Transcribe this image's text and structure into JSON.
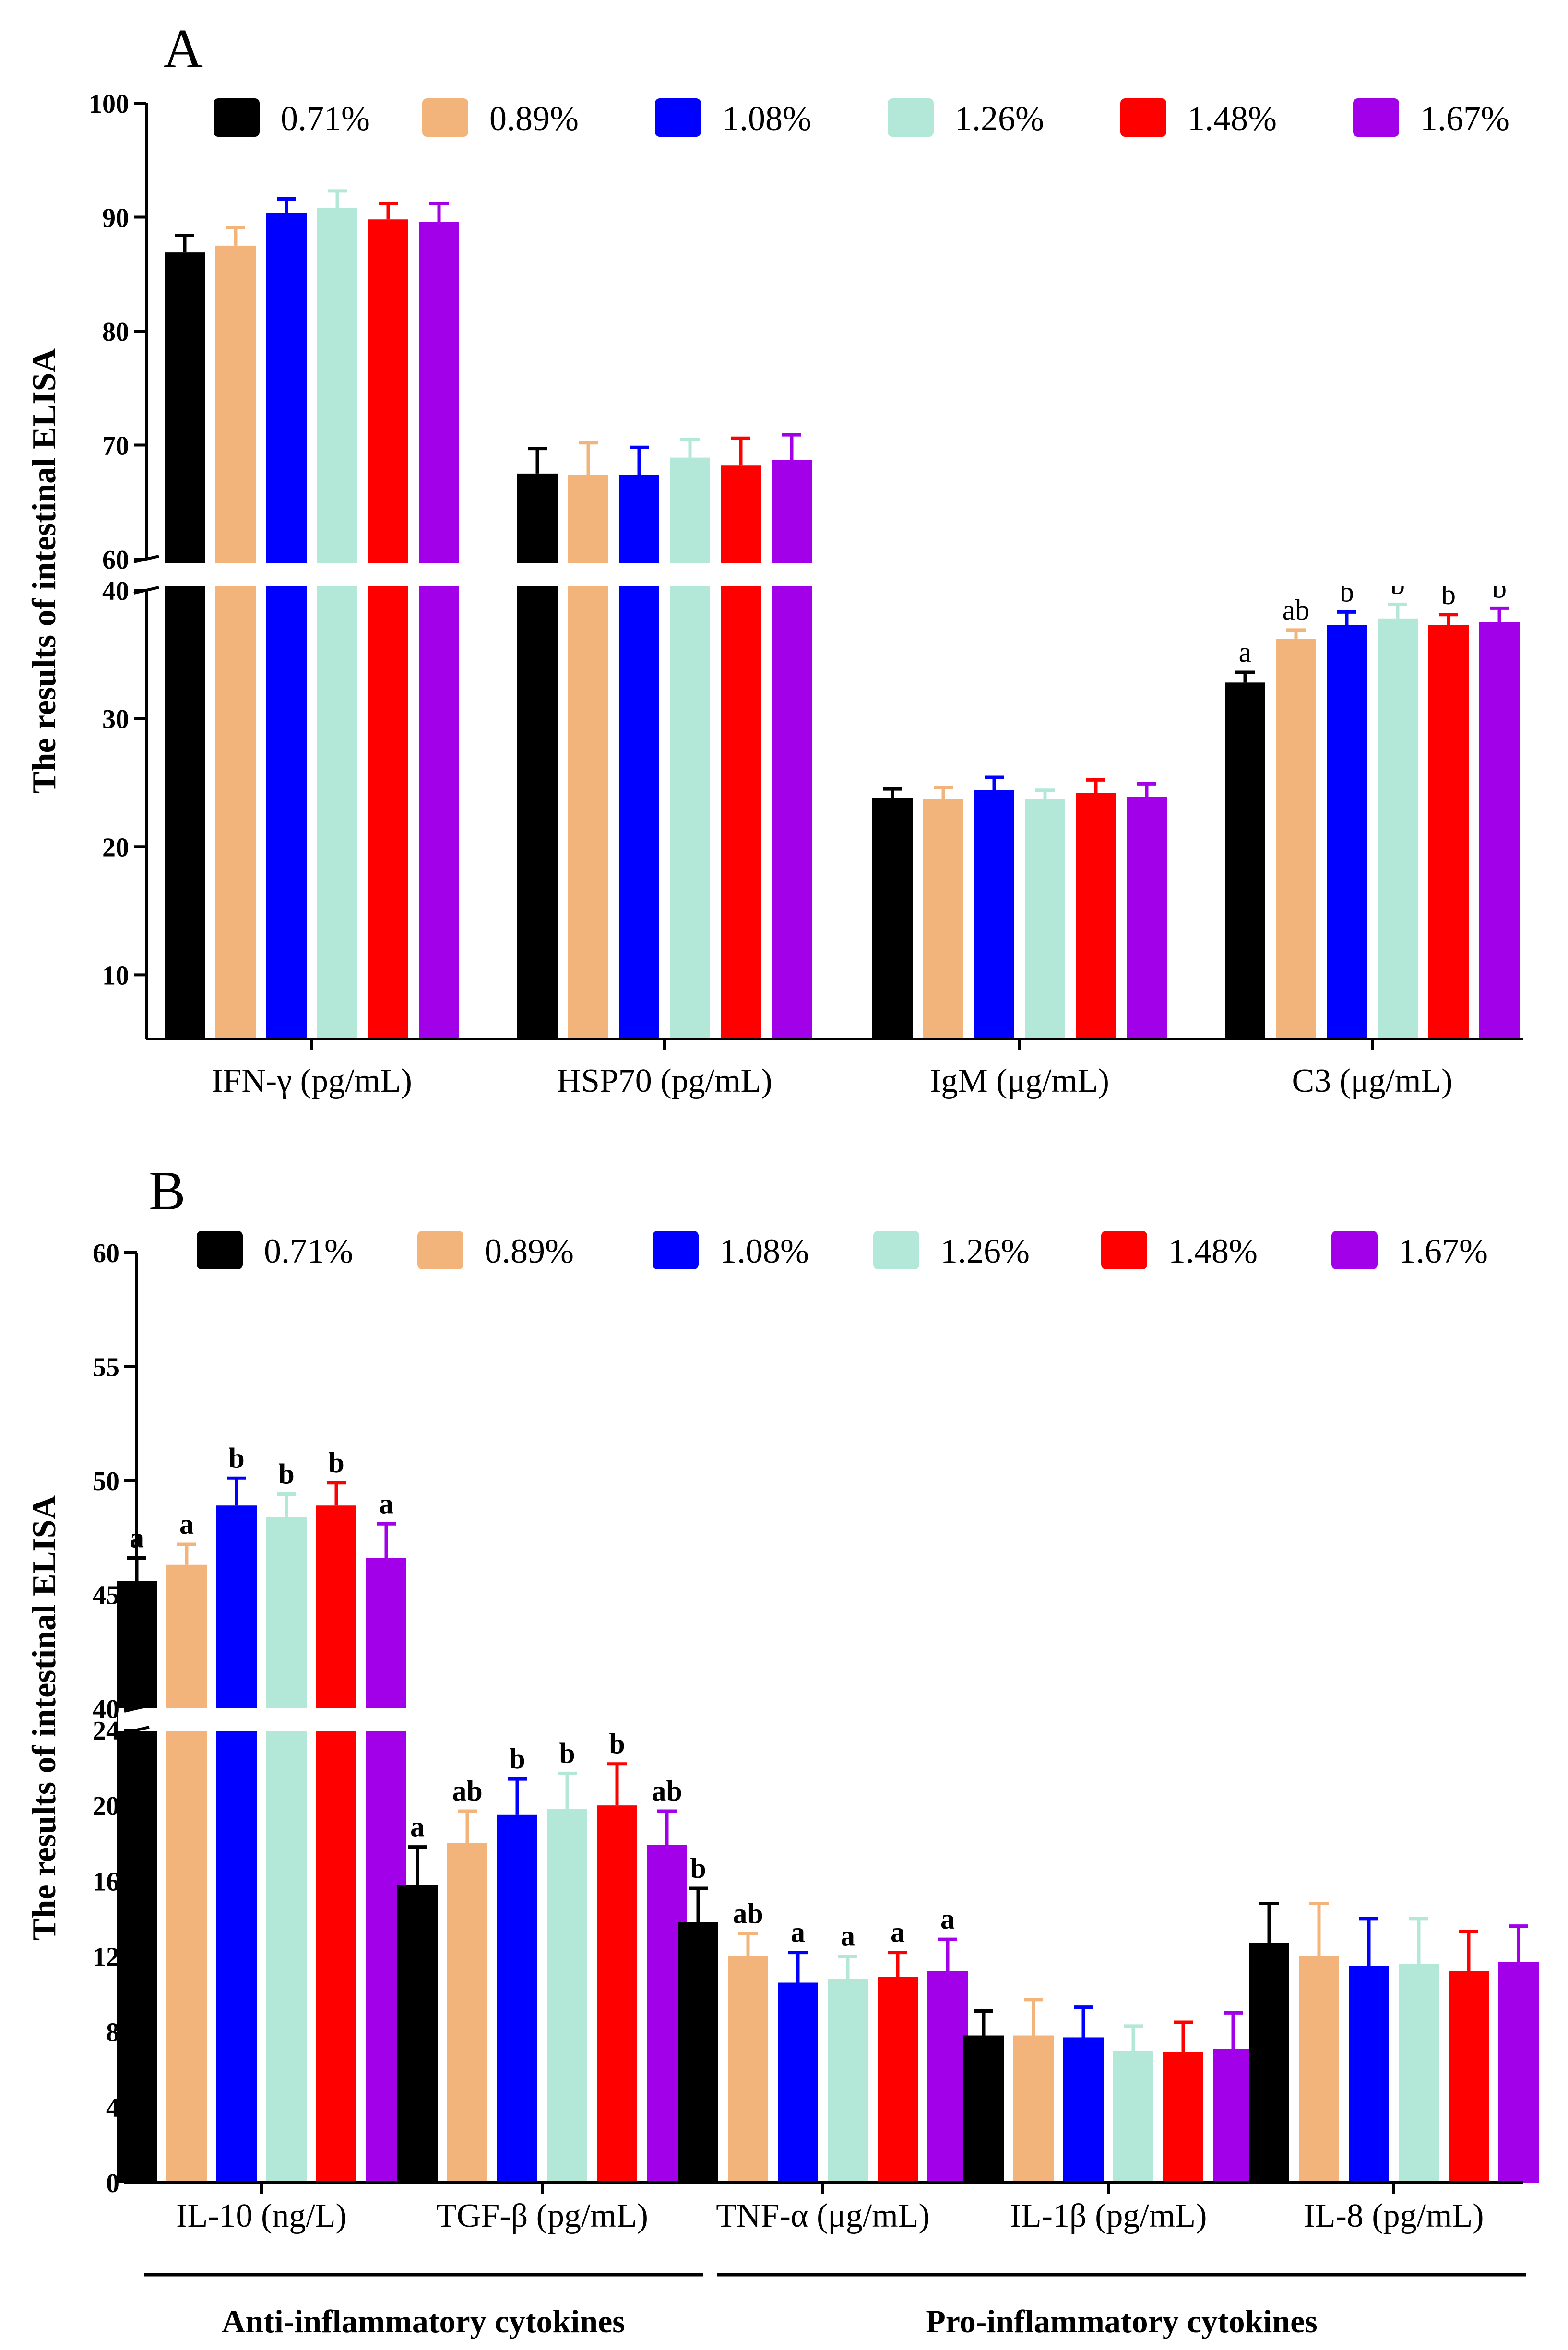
{
  "chart_data": [
    {
      "panel": "A",
      "type": "bar",
      "ylabel": "The results of intestinal ELISA",
      "axis_break": {
        "lower": [
          5,
          40
        ],
        "upper": [
          60,
          100
        ]
      },
      "yticks_lower": [
        10,
        20,
        30,
        40
      ],
      "yticks_upper": [
        60,
        70,
        80,
        90,
        100
      ],
      "legend": {
        "placement": "top"
      },
      "categories": [
        "IFN-γ (pg/mL)",
        "HSP70 (pg/mL)",
        "IgM (μg/mL)",
        "C3 (μg/mL)"
      ],
      "series": [
        {
          "name": "0.71%",
          "color": "#000000",
          "values": [
            86.9,
            67.5,
            23.8,
            32.8
          ],
          "errors": [
            1.5,
            2.2,
            0.7,
            0.8
          ],
          "labels": [
            "",
            "",
            "",
            "a"
          ]
        },
        {
          "name": "0.89%",
          "color": "#F2B47A",
          "values": [
            87.5,
            67.4,
            23.7,
            36.2
          ],
          "errors": [
            1.6,
            2.8,
            0.9,
            0.7
          ],
          "labels": [
            "",
            "",
            "",
            "ab"
          ]
        },
        {
          "name": "1.08%",
          "color": "#0000FF",
          "values": [
            90.4,
            67.4,
            24.4,
            37.3
          ],
          "errors": [
            1.2,
            2.4,
            1.0,
            1.0
          ],
          "labels": [
            "",
            "",
            "",
            "b"
          ]
        },
        {
          "name": "1.26%",
          "color": "#B3E8D8",
          "values": [
            90.8,
            68.9,
            23.7,
            37.8
          ],
          "errors": [
            1.5,
            1.6,
            0.7,
            1.1
          ],
          "labels": [
            "",
            "",
            "",
            "b"
          ]
        },
        {
          "name": "1.48%",
          "color": "#FF0000",
          "values": [
            89.8,
            68.2,
            24.2,
            37.3
          ],
          "errors": [
            1.4,
            2.4,
            1.0,
            0.8
          ],
          "labels": [
            "",
            "",
            "",
            "b"
          ]
        },
        {
          "name": "1.67%",
          "color": "#A100E8",
          "values": [
            89.6,
            68.7,
            23.9,
            37.5
          ],
          "errors": [
            1.6,
            2.2,
            1.0,
            1.1
          ],
          "labels": [
            "",
            "",
            "",
            "b"
          ]
        }
      ],
      "label_style": "normal"
    },
    {
      "panel": "B",
      "type": "bar",
      "ylabel": "The results of intestinal ELISA",
      "axis_break": {
        "lower": [
          0,
          24
        ],
        "upper": [
          40,
          60
        ]
      },
      "yticks_lower": [
        0,
        4,
        8,
        12,
        16,
        20,
        24
      ],
      "yticks_upper": [
        40,
        45,
        50,
        55,
        60
      ],
      "legend": {
        "placement": "top"
      },
      "categories": [
        "IL-10 (ng/L)",
        "TGF-β (pg/mL)",
        "TNF-α (μg/mL)",
        "IL-1β (pg/mL)",
        "IL-8 (pg/mL)"
      ],
      "series": [
        {
          "name": "0.71%",
          "color": "#000000",
          "values": [
            45.6,
            15.8,
            13.8,
            7.8,
            12.7
          ],
          "errors": [
            1.0,
            2.0,
            1.8,
            1.3,
            2.1
          ],
          "labels": [
            "a",
            "a",
            "b",
            "",
            ""
          ]
        },
        {
          "name": "0.89%",
          "color": "#F2B47A",
          "values": [
            46.3,
            18.0,
            12.0,
            7.8,
            12.0
          ],
          "errors": [
            0.9,
            1.7,
            1.2,
            1.9,
            2.8
          ],
          "labels": [
            "a",
            "ab",
            "ab",
            "",
            ""
          ]
        },
        {
          "name": "1.08%",
          "color": "#0000FF",
          "values": [
            48.9,
            19.5,
            10.6,
            7.7,
            11.5
          ],
          "errors": [
            1.2,
            1.9,
            1.6,
            1.6,
            2.5
          ],
          "labels": [
            "b",
            "b",
            "a",
            "",
            ""
          ]
        },
        {
          "name": "1.26%",
          "color": "#B3E8D8",
          "values": [
            48.4,
            19.8,
            10.8,
            7.0,
            11.6
          ],
          "errors": [
            1.0,
            1.9,
            1.2,
            1.3,
            2.4
          ],
          "labels": [
            "b",
            "b",
            "a",
            "",
            ""
          ]
        },
        {
          "name": "1.48%",
          "color": "#FF0000",
          "values": [
            48.9,
            20.0,
            10.9,
            6.9,
            11.2
          ],
          "errors": [
            1.0,
            2.2,
            1.3,
            1.6,
            2.1
          ],
          "labels": [
            "b",
            "b",
            "a",
            "",
            ""
          ]
        },
        {
          "name": "1.67%",
          "color": "#A100E8",
          "values": [
            46.6,
            17.9,
            11.2,
            7.1,
            11.7
          ],
          "errors": [
            1.5,
            1.8,
            1.7,
            1.9,
            1.9
          ],
          "labels": [
            "a",
            "ab",
            "a",
            "",
            ""
          ]
        }
      ],
      "label_style": "bold",
      "groups": [
        {
          "label": "Anti-inflammatory cytokines",
          "category_span": [
            0,
            1
          ]
        },
        {
          "label": "Pro-inflammatory cytokines",
          "category_span": [
            2,
            4
          ]
        }
      ]
    }
  ]
}
